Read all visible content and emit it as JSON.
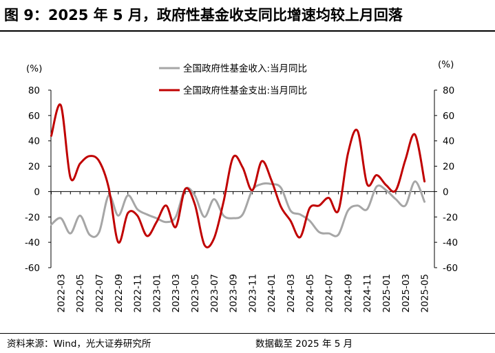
{
  "title": "图 9：2025 年 5 月，政府性基金收支同比增速均较上月回落",
  "footer": {
    "source": "资料来源：Wind，光大证券研究所",
    "cutoff": "数据截至 2025 年 5 月"
  },
  "colors": {
    "revenue": "#a6a6a6",
    "expenditure": "#c00000"
  },
  "chart_data": {
    "type": "line",
    "left_axis": {
      "unit": "(%)",
      "ylim": [
        -60,
        80
      ],
      "ticks": [
        80,
        60,
        40,
        20,
        0,
        -20,
        -40,
        -60
      ]
    },
    "right_axis": {
      "unit": "(%)",
      "ylim": [
        -60,
        80
      ],
      "ticks": [
        80,
        60,
        40,
        20,
        0,
        -20,
        -40,
        -60
      ]
    },
    "x_tick_labels": [
      "2022-03",
      "2022-05",
      "2022-07",
      "2022-09",
      "2022-11",
      "2023-01",
      "2023-03",
      "2023-05",
      "2023-07",
      "2023-09",
      "2023-11",
      "2024-01",
      "2024-03",
      "2024-05",
      "2024-07",
      "2024-09",
      "2024-11",
      "2025-01",
      "2025-03",
      "2025-05"
    ],
    "x": [
      "2022-02",
      "2022-03",
      "2022-04",
      "2022-05",
      "2022-06",
      "2022-07",
      "2022-08",
      "2022-09",
      "2022-10",
      "2022-11",
      "2022-12",
      "2023-01",
      "2023-02",
      "2023-03",
      "2023-04",
      "2023-05",
      "2023-06",
      "2023-07",
      "2023-08",
      "2023-09",
      "2023-10",
      "2023-11",
      "2023-12",
      "2024-01",
      "2024-02",
      "2024-03",
      "2024-04",
      "2024-05",
      "2024-06",
      "2024-07",
      "2024-08",
      "2024-09",
      "2024-10",
      "2024-11",
      "2024-12",
      "2025-01",
      "2025-02",
      "2025-03",
      "2025-04",
      "2025-05"
    ],
    "legend_position": "top-center",
    "series": [
      {
        "name": "全国政府性基金收入:当月同比",
        "values": [
          -26,
          -21,
          -33,
          -19,
          -34,
          -32,
          -3,
          -19,
          -3,
          -14,
          -18,
          -21,
          -24,
          -20,
          2,
          -3,
          -20,
          -6,
          -19,
          -21,
          -18,
          1,
          6,
          6,
          3,
          -15,
          -18,
          -23,
          -32,
          -33,
          -34,
          -15,
          -11,
          -14,
          4,
          1,
          -6,
          -11,
          8,
          -8
        ]
      },
      {
        "name": "全国政府性基金支出:当月同比",
        "values": [
          44,
          68,
          11,
          22,
          28,
          24,
          3,
          -40,
          -17,
          -19,
          -35,
          -24,
          -11,
          -28,
          2,
          -10,
          -42,
          -37,
          -8,
          27,
          19,
          1,
          24,
          9,
          -12,
          -23,
          -36,
          -13,
          -11,
          -5,
          -15,
          30,
          48,
          6,
          13,
          5,
          1,
          25,
          45,
          8
        ]
      }
    ]
  }
}
